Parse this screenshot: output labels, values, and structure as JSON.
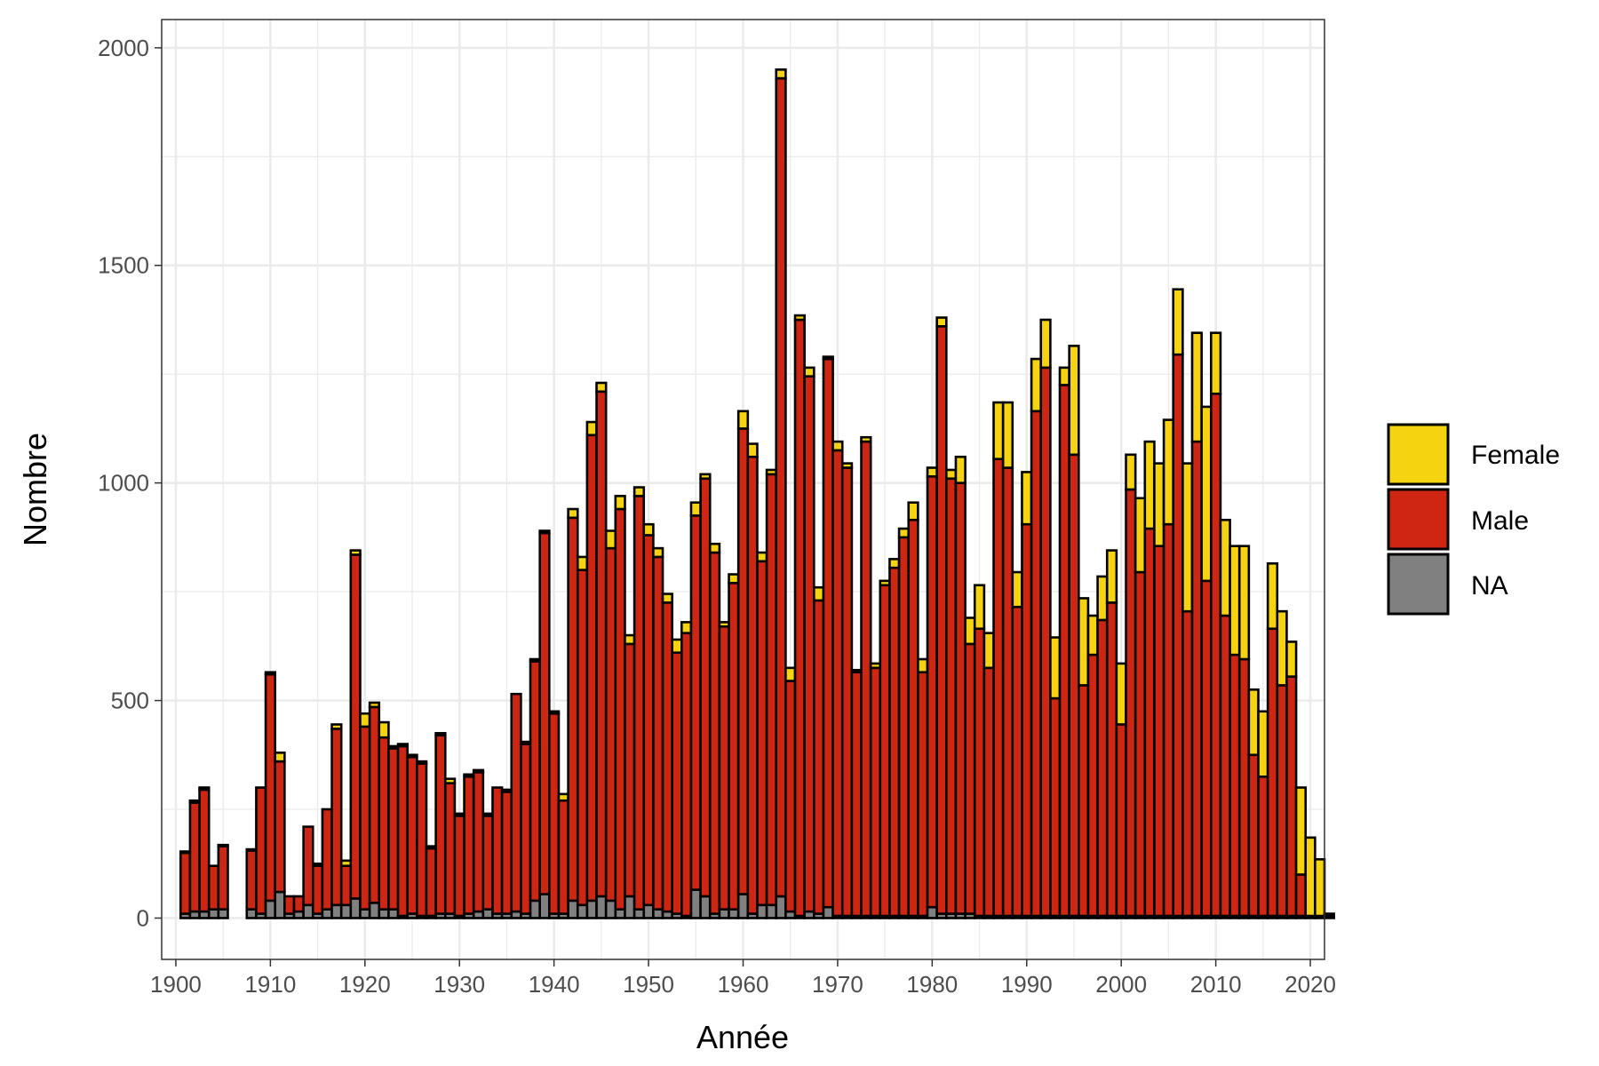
{
  "chart_data": {
    "type": "bar",
    "stacked": true,
    "title": "",
    "xlabel": "Année",
    "ylabel": "Nombre",
    "xlim": [
      1898.5,
      2021.5
    ],
    "ylim": [
      -95,
      2065
    ],
    "x_ticks": [
      "1900",
      "1910",
      "1920",
      "1930",
      "1940",
      "1950",
      "1960",
      "1970",
      "1980",
      "1990",
      "2000",
      "2010",
      "2020"
    ],
    "y_ticks": [
      "0",
      "500",
      "1000",
      "1500",
      "2000"
    ],
    "grid": true,
    "legend_position": "right",
    "series": [
      {
        "name": "Female",
        "color": "#F5D311",
        "values": [
          0,
          3,
          5,
          5,
          0,
          3,
          0,
          0,
          3,
          0,
          5,
          20,
          0,
          0,
          0,
          5,
          0,
          10,
          12,
          10,
          30,
          10,
          35,
          5,
          5,
          5,
          5,
          5,
          5,
          10,
          5,
          5,
          5,
          5,
          0,
          5,
          0,
          5,
          5,
          5,
          5,
          15,
          20,
          30,
          30,
          20,
          40,
          30,
          20,
          20,
          25,
          20,
          20,
          30,
          25,
          30,
          10,
          20,
          10,
          20,
          40,
          30,
          20,
          10,
          20,
          30,
          10,
          20,
          30,
          5,
          20,
          10,
          5,
          10,
          10,
          10,
          20,
          20,
          40,
          30,
          20,
          20,
          20,
          60,
          60,
          100,
          80,
          130,
          150,
          80,
          120,
          120,
          110,
          140,
          40,
          250,
          200,
          90,
          100,
          120,
          140,
          80,
          170,
          200,
          190,
          240,
          150,
          340,
          250,
          400,
          140,
          220,
          250,
          260,
          150,
          150,
          150,
          170,
          80,
          200,
          180,
          130,
          5
        ]
      },
      {
        "name": "Male",
        "color": "#CD2612",
        "values": [
          0,
          140,
          250,
          280,
          100,
          145,
          0,
          0,
          135,
          290,
          520,
          300,
          40,
          35,
          180,
          110,
          230,
          405,
          90,
          790,
          420,
          450,
          395,
          370,
          390,
          360,
          350,
          155,
          410,
          300,
          230,
          315,
          320,
          215,
          290,
          280,
          500,
          390,
          550,
          830,
          460,
          260,
          880,
          770,
          1070,
          1160,
          810,
          920,
          580,
          950,
          850,
          810,
          710,
          600,
          650,
          860,
          960,
          830,
          650,
          750,
          1070,
          1050,
          790,
          990,
          1880,
          530,
          1370,
          1230,
          720,
          1260,
          1070,
          1030,
          560,
          1090,
          570,
          760,
          800,
          870,
          910,
          560,
          990,
          1350,
          1000,
          990,
          620,
          660,
          570,
          1050,
          1030,
          710,
          900,
          1160,
          1260,
          500,
          1220,
          1060,
          530,
          600,
          680,
          720,
          440,
          980,
          790,
          890,
          850,
          900,
          1290,
          700,
          1090,
          770,
          1200,
          690,
          600,
          590,
          370,
          320,
          660,
          530,
          550,
          95
        ]
      },
      {
        "name": "NA",
        "color": "#808080",
        "values": [
          0,
          10,
          15,
          15,
          20,
          20,
          0,
          0,
          20,
          10,
          40,
          60,
          10,
          15,
          30,
          10,
          20,
          30,
          30,
          45,
          20,
          35,
          20,
          20,
          5,
          10,
          5,
          5,
          10,
          10,
          5,
          10,
          15,
          20,
          10,
          10,
          15,
          10,
          40,
          55,
          10,
          10,
          40,
          30,
          40,
          50,
          40,
          20,
          50,
          20,
          30,
          20,
          15,
          10,
          5,
          65,
          50,
          10,
          20,
          20,
          55,
          10,
          30,
          30,
          50,
          15,
          5,
          15,
          10,
          25,
          5,
          5,
          5,
          5,
          5,
          5,
          5,
          5,
          5,
          5,
          25,
          10,
          10,
          10,
          10,
          5,
          5,
          5,
          5,
          5,
          5,
          5,
          5,
          5,
          5,
          5,
          5,
          5,
          5,
          5,
          5,
          5,
          5,
          5,
          5,
          5,
          5,
          5,
          5,
          5,
          5,
          5,
          5,
          5,
          5,
          5,
          5,
          5,
          5,
          5,
          5,
          5,
          5
        ]
      }
    ],
    "x_start": 1900
  },
  "legend": {
    "items": [
      {
        "label": "Female",
        "color": "#F5D311"
      },
      {
        "label": "Male",
        "color": "#CD2612"
      },
      {
        "label": "NA",
        "color": "#808080"
      }
    ]
  }
}
